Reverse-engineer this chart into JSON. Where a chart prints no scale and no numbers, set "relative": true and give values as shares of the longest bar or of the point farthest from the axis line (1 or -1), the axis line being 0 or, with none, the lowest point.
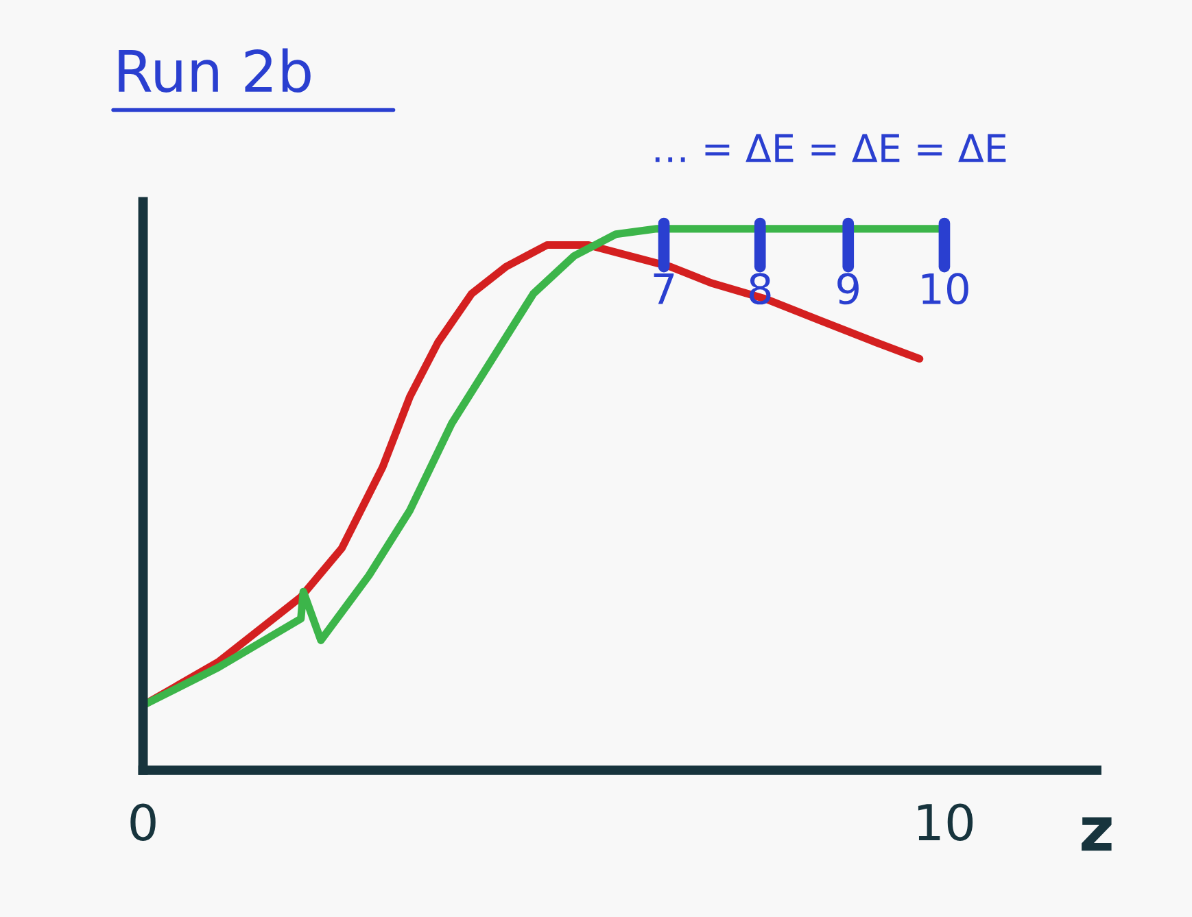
{
  "chart_data": {
    "type": "line",
    "title": "Run 2b",
    "xlabel": "z",
    "relative": true,
    "tick_labels": "x",
    "xlim": [
      0,
      11.9
    ],
    "xticks": [
      0,
      10
    ],
    "grid": false,
    "legend": false,
    "series": [
      {
        "color": "#d42020",
        "x": [
          0,
          0.94,
          1.97,
          2.48,
          2.99,
          3.33,
          3.68,
          4.1,
          4.53,
          5.04,
          5.56,
          6.07,
          6.58,
          7.09,
          7.78,
          8.46,
          9.15,
          9.69
        ],
        "values": [
          0.12,
          0.2,
          0.32,
          0.41,
          0.56,
          0.69,
          0.79,
          0.88,
          0.93,
          0.97,
          0.97,
          0.95,
          0.93,
          0.9,
          0.87,
          0.83,
          0.79,
          0.76
        ]
      },
      {
        "color": "#3cb54a",
        "x": [
          0,
          0.94,
          1.97,
          2.0,
          2.22,
          2.82,
          3.33,
          3.85,
          4.36,
          4.87,
          5.38,
          5.9,
          6.41,
          7.61,
          8.8,
          10
        ],
        "values": [
          0.12,
          0.19,
          0.28,
          0.33,
          0.24,
          0.36,
          0.48,
          0.64,
          0.76,
          0.88,
          0.95,
          0.99,
          1.0,
          1.0,
          1.0,
          1.0
        ]
      }
    ],
    "annotations": [
      {
        "text": "7",
        "x": 6.5,
        "y": 1.0
      },
      {
        "text": "8",
        "x": 7.7,
        "y": 1.0
      },
      {
        "text": "9",
        "x": 8.8,
        "y": 1.0
      },
      {
        "text": "10",
        "x": 10,
        "y": 1.0
      },
      "… = ΔE = ΔE = ΔE"
    ]
  }
}
